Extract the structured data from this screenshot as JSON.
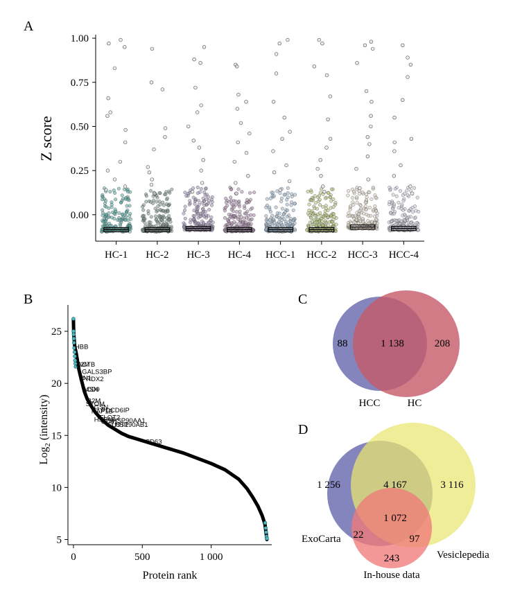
{
  "chart_data": [
    {
      "panel": "A",
      "type": "scatter",
      "ylabel": "Z score",
      "ylim": [
        -0.15,
        1.02
      ],
      "yticks": [
        "1.00",
        "0.75",
        "0.50",
        "0.25",
        "0.00"
      ],
      "categories": [
        "HC-1",
        "HC-2",
        "HC-3",
        "HC-4",
        "HCC-1",
        "HCC-2",
        "HCC-3",
        "HCC-4"
      ],
      "series_colors": [
        "#5aa59f",
        "#7e8f8d",
        "#9c8fb0",
        "#a58aa8",
        "#9db5c8",
        "#b5c27e",
        "#d8d2c2",
        "#c7c4d6"
      ],
      "box_medians": [
        -0.085,
        -0.085,
        -0.078,
        -0.085,
        -0.085,
        -0.085,
        -0.07,
        -0.078
      ],
      "high_points": [
        [
          0.99,
          0.97,
          0.95,
          0.83,
          0.66,
          0.58,
          0.56,
          0.48,
          0.41,
          0.3,
          0.25,
          0.2,
          0.16,
          0.14
        ],
        [
          0.94,
          0.75,
          0.71,
          0.49,
          0.44,
          0.37,
          0.27,
          0.24,
          0.2,
          0.17,
          0.12
        ],
        [
          0.95,
          0.88,
          0.86,
          0.72,
          0.62,
          0.58,
          0.5,
          0.42,
          0.38,
          0.31,
          0.25,
          0.18,
          0.13
        ],
        [
          0.85,
          0.84,
          0.68,
          0.64,
          0.6,
          0.52,
          0.46,
          0.41,
          0.35,
          0.3,
          0.22,
          0.18,
          0.12
        ],
        [
          0.99,
          0.97,
          0.91,
          0.8,
          0.64,
          0.55,
          0.47,
          0.43,
          0.36,
          0.28,
          0.24,
          0.19,
          0.14
        ],
        [
          0.99,
          0.97,
          0.84,
          0.79,
          0.67,
          0.54,
          0.43,
          0.38,
          0.31,
          0.26,
          0.22,
          0.16,
          0.13
        ],
        [
          0.98,
          0.96,
          0.94,
          0.86,
          0.7,
          0.64,
          0.56,
          0.5,
          0.44,
          0.4,
          0.33,
          0.26,
          0.2,
          0.15
        ],
        [
          0.96,
          0.89,
          0.85,
          0.78,
          0.65,
          0.55,
          0.43,
          0.41,
          0.36,
          0.28,
          0.22,
          0.16,
          0.12
        ]
      ]
    },
    {
      "panel": "B",
      "type": "line",
      "xlabel": "Protein rank",
      "ylabel_main": "Log",
      "ylabel_sub": "2",
      "ylabel_rest": " (intensity)",
      "xlim": [
        -40,
        1440
      ],
      "ylim": [
        4.5,
        27
      ],
      "xticks": [
        0,
        500,
        1000
      ],
      "xtick_labels": [
        "0",
        "500",
        "1 000"
      ],
      "yticks": [
        5,
        10,
        15,
        20,
        25
      ],
      "curve": [
        [
          0,
          26.2
        ],
        [
          2,
          24.9
        ],
        [
          5,
          24.3
        ],
        [
          10,
          23.5
        ],
        [
          20,
          22.9
        ],
        [
          40,
          21.3
        ],
        [
          60,
          20.2
        ],
        [
          80,
          19.2
        ],
        [
          100,
          18.5
        ],
        [
          130,
          17.8
        ],
        [
          160,
          17.2
        ],
        [
          200,
          16.6
        ],
        [
          250,
          16.0
        ],
        [
          300,
          15.6
        ],
        [
          350,
          15.2
        ],
        [
          400,
          14.9
        ],
        [
          500,
          14.5
        ],
        [
          600,
          14.1
        ],
        [
          700,
          13.7
        ],
        [
          800,
          13.3
        ],
        [
          900,
          12.8
        ],
        [
          1000,
          12.3
        ],
        [
          1100,
          11.7
        ],
        [
          1200,
          10.8
        ],
        [
          1260,
          9.9
        ],
        [
          1300,
          9.1
        ],
        [
          1340,
          8.2
        ],
        [
          1370,
          7.3
        ],
        [
          1390,
          6.5
        ],
        [
          1400,
          5.5
        ],
        [
          1405,
          5.0
        ]
      ],
      "highlight_points": [
        [
          0,
          26.2
        ],
        [
          1,
          25.0
        ],
        [
          2,
          24.7
        ],
        [
          3,
          24.3
        ],
        [
          4,
          23.9
        ],
        [
          6,
          23.4
        ],
        [
          8,
          23.0
        ],
        [
          10,
          22.6
        ],
        [
          12,
          22.2
        ],
        [
          14,
          21.9
        ],
        [
          16,
          21.6
        ],
        [
          1392,
          6.6
        ],
        [
          1396,
          6.1
        ],
        [
          1399,
          5.7
        ],
        [
          1402,
          5.3
        ],
        [
          1405,
          5.1
        ]
      ],
      "labels": [
        {
          "text": "HBB",
          "x": 10,
          "y": 23.3
        },
        {
          "text": "A2M",
          "x": 20,
          "y": 21.6
        },
        {
          "text": "ACTB",
          "x": 30,
          "y": 21.6
        },
        {
          "text": "LGALS3BP",
          "x": 35,
          "y": 20.9
        },
        {
          "text": "FN1",
          "x": 40,
          "y": 20.3
        },
        {
          "text": "PRDX2",
          "x": 60,
          "y": 20.2
        },
        {
          "text": "MSN",
          "x": 75,
          "y": 19.2
        },
        {
          "text": "CD9",
          "x": 95,
          "y": 19.2
        },
        {
          "text": "B2M",
          "x": 100,
          "y": 18.1
        },
        {
          "text": "STOM",
          "x": 90,
          "y": 17.8
        },
        {
          "text": "GSN",
          "x": 150,
          "y": 17.5
        },
        {
          "text": "PDCD6IP",
          "x": 200,
          "y": 17.2
        },
        {
          "text": "RAP1B",
          "x": 130,
          "y": 17.1
        },
        {
          "text": "FLOT2",
          "x": 190,
          "y": 16.5
        },
        {
          "text": "HSP90AA1",
          "x": 280,
          "y": 16.2
        },
        {
          "text": "HSPA8",
          "x": 150,
          "y": 16.3
        },
        {
          "text": "CD81",
          "x": 200,
          "y": 16.1
        },
        {
          "text": "HSP90AB1",
          "x": 300,
          "y": 15.8
        },
        {
          "text": "FLOT1",
          "x": 250,
          "y": 15.8
        },
        {
          "text": "CD63",
          "x": 520,
          "y": 14.2
        }
      ]
    },
    {
      "panel": "C",
      "type": "venn",
      "sets": [
        "HCC",
        "HC"
      ],
      "colors": [
        "#6e70b0",
        "#c65a69"
      ],
      "regions": {
        "HCC_only": "88",
        "both": "1 138",
        "HC_only": "208"
      }
    },
    {
      "panel": "D",
      "type": "venn",
      "sets": [
        "ExoCarta",
        "Vesiclepedia",
        "In-house data"
      ],
      "colors": [
        "#6e70b0",
        "#e9e66f",
        "#f07a7a"
      ],
      "regions": {
        "exocarta_only": "1 256",
        "exo_vesicle": "4 167",
        "vesicle_only": "3 116",
        "all_three": "1 072",
        "exo_inhouse": "22",
        "vesicle_inhouse": "97",
        "inhouse_only": "243"
      }
    }
  ],
  "panel_letters": [
    "A",
    "B",
    "C",
    "D"
  ]
}
